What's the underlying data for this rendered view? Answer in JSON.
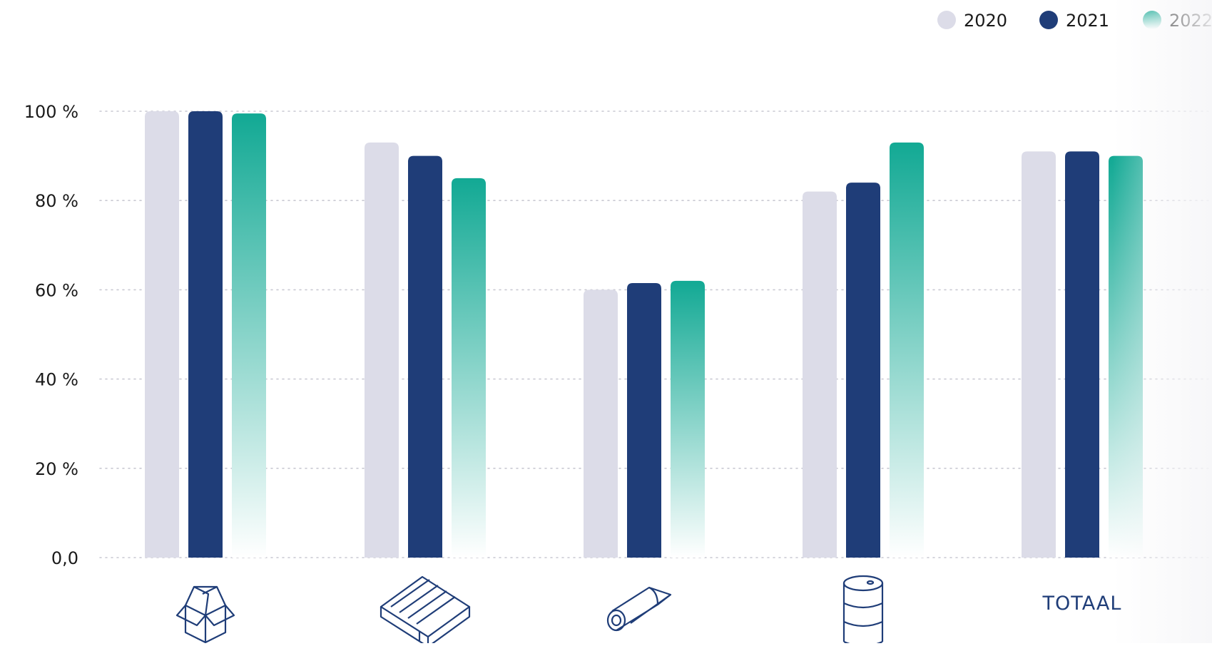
{
  "colors": {
    "series_2020": "#dcdce8",
    "series_2021": "#1f3d78",
    "series_2022_top": "#12a994",
    "series_2022_bottom": "#ffffff",
    "axis_text": "#1a1a1a",
    "category_text": "#1f3d78",
    "grid": "#c9c9d2"
  },
  "chart_data": {
    "type": "bar",
    "categories": [
      "box-icon",
      "pallet-icon",
      "film-roll-icon",
      "drum-icon",
      "TOTAAL"
    ],
    "category_labels": [
      "",
      "",
      "",
      "",
      "TOTAAL"
    ],
    "series": [
      {
        "name": "2020",
        "values": [
          100,
          93,
          60,
          82,
          91
        ]
      },
      {
        "name": "2021",
        "values": [
          100,
          90,
          61.5,
          84,
          91
        ]
      },
      {
        "name": "2022",
        "values": [
          99.5,
          85,
          62,
          93,
          90
        ]
      }
    ],
    "ylim": [
      0,
      100
    ],
    "yticks": [
      0,
      20,
      40,
      60,
      80,
      100
    ],
    "ytick_labels": [
      "0,0",
      "20 %",
      "40 %",
      "60 %",
      "80 %",
      "100 %"
    ],
    "grid": true,
    "legend": "top-right"
  }
}
